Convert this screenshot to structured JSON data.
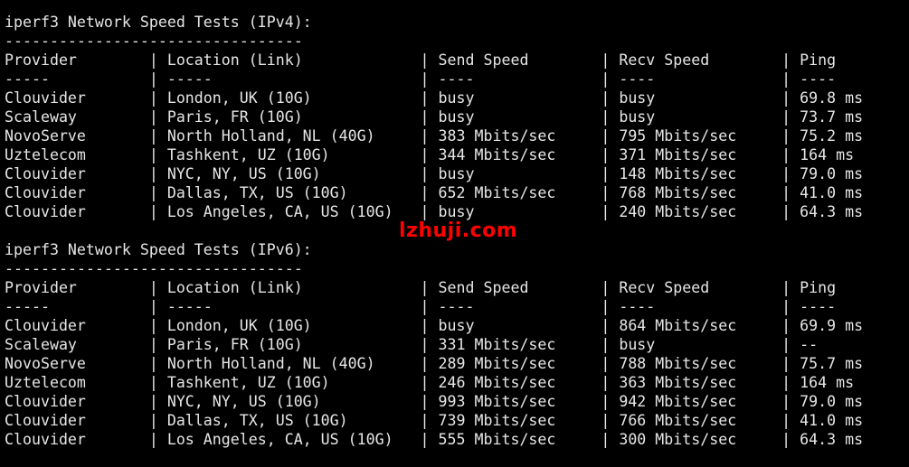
{
  "sections": [
    {
      "title": "iperf3 Network Speed Tests (IPv4):",
      "divider": "---------------------------------",
      "headers": [
        "Provider",
        "Location (Link)",
        "Send Speed",
        "Recv Speed",
        "Ping"
      ],
      "underlines": [
        "-----",
        "-----",
        "----",
        "----",
        "----"
      ],
      "rows": [
        [
          "Clouvider",
          "London, UK (10G)",
          "busy",
          "busy",
          "69.8 ms"
        ],
        [
          "Scaleway",
          "Paris, FR (10G)",
          "busy",
          "busy",
          "73.7 ms"
        ],
        [
          "NovoServe",
          "North Holland, NL (40G)",
          "383 Mbits/sec",
          "795 Mbits/sec",
          "75.2 ms"
        ],
        [
          "Uztelecom",
          "Tashkent, UZ (10G)",
          "344 Mbits/sec",
          "371 Mbits/sec",
          "164 ms"
        ],
        [
          "Clouvider",
          "NYC, NY, US (10G)",
          "busy",
          "148 Mbits/sec",
          "79.0 ms"
        ],
        [
          "Clouvider",
          "Dallas, TX, US (10G)",
          "652 Mbits/sec",
          "768 Mbits/sec",
          "41.0 ms"
        ],
        [
          "Clouvider",
          "Los Angeles, CA, US (10G)",
          "busy",
          "240 Mbits/sec",
          "64.3 ms"
        ]
      ]
    },
    {
      "title": "iperf3 Network Speed Tests (IPv6):",
      "divider": "---------------------------------",
      "headers": [
        "Provider",
        "Location (Link)",
        "Send Speed",
        "Recv Speed",
        "Ping"
      ],
      "underlines": [
        "-----",
        "-----",
        "----",
        "----",
        "----"
      ],
      "rows": [
        [
          "Clouvider",
          "London, UK (10G)",
          "busy",
          "864 Mbits/sec",
          "69.9 ms"
        ],
        [
          "Scaleway",
          "Paris, FR (10G)",
          "331 Mbits/sec",
          "busy",
          "--"
        ],
        [
          "NovoServe",
          "North Holland, NL (40G)",
          "289 Mbits/sec",
          "788 Mbits/sec",
          "75.7 ms"
        ],
        [
          "Uztelecom",
          "Tashkent, UZ (10G)",
          "246 Mbits/sec",
          "363 Mbits/sec",
          "164 ms"
        ],
        [
          "Clouvider",
          "NYC, NY, US (10G)",
          "993 Mbits/sec",
          "942 Mbits/sec",
          "79.0 ms"
        ],
        [
          "Clouvider",
          "Dallas, TX, US (10G)",
          "739 Mbits/sec",
          "766 Mbits/sec",
          "41.0 ms"
        ],
        [
          "Clouvider",
          "Los Angeles, CA, US (10G)",
          "555 Mbits/sec",
          "300 Mbits/sec",
          "64.3 ms"
        ]
      ]
    }
  ],
  "watermark": "lzhuji.com",
  "colors": {
    "background": "#000000",
    "text": "#e6e6e6",
    "watermark": "#ff0000"
  }
}
